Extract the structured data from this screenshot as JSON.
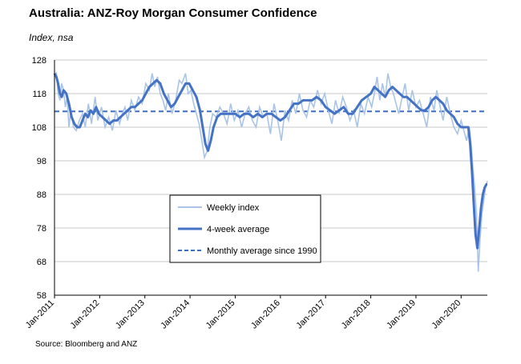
{
  "header": {
    "title": "Australia: ANZ-Roy Morgan Consumer Confidence",
    "subtitle": "Index, nsa"
  },
  "footer": {
    "source": "Source: Bloomberg and ANZ"
  },
  "colors": {
    "weekly": "#a9c4e6",
    "avg4": "#4472c4",
    "monthly": "#3f6fbf",
    "grid": "#c8c8c8"
  },
  "chart_data": {
    "type": "line",
    "title": "Australia: ANZ-Roy Morgan Consumer Confidence",
    "ylabel": "Index, nsa",
    "xlabel": "",
    "ylim": [
      58,
      128
    ],
    "yticks": [
      58,
      68,
      78,
      88,
      98,
      108,
      118,
      128
    ],
    "xlim": [
      2011.0,
      2020.58
    ],
    "xticks": [
      {
        "x": 2011,
        "label": "Jan-2011"
      },
      {
        "x": 2012,
        "label": "Jan-2012"
      },
      {
        "x": 2013,
        "label": "Jan-2013"
      },
      {
        "x": 2014,
        "label": "Jan-2014"
      },
      {
        "x": 2015,
        "label": "Jan-2015"
      },
      {
        "x": 2016,
        "label": "Jan-2016"
      },
      {
        "x": 2017,
        "label": "Jan-2017"
      },
      {
        "x": 2018,
        "label": "Jan-2018"
      },
      {
        "x": 2019,
        "label": "Jan-2019"
      },
      {
        "x": 2020,
        "label": "Jan-2020"
      }
    ],
    "legend": [
      "Weekly index",
      "4-week average",
      "Monthly average since 1990"
    ],
    "series": [
      {
        "name": "Weekly index",
        "style": "thin-light",
        "x": [
          2011.0,
          2011.04,
          2011.08,
          2011.12,
          2011.16,
          2011.2,
          2011.24,
          2011.28,
          2011.32,
          2011.36,
          2011.42,
          2011.48,
          2011.55,
          2011.62,
          2011.68,
          2011.75,
          2011.82,
          2011.9,
          2011.96,
          2012.04,
          2012.12,
          2012.2,
          2012.28,
          2012.36,
          2012.44,
          2012.5,
          2012.56,
          2012.62,
          2012.7,
          2012.78,
          2012.86,
          2012.94,
          2013.02,
          2013.1,
          2013.16,
          2013.22,
          2013.28,
          2013.34,
          2013.4,
          2013.46,
          2013.52,
          2013.6,
          2013.68,
          2013.76,
          2013.82,
          2013.9,
          2013.96,
          2014.02,
          2014.08,
          2014.14,
          2014.2,
          2014.26,
          2014.32,
          2014.38,
          2014.44,
          2014.5,
          2014.58,
          2014.66,
          2014.74,
          2014.82,
          2014.9,
          2014.98,
          2015.06,
          2015.14,
          2015.22,
          2015.3,
          2015.38,
          2015.46,
          2015.54,
          2015.62,
          2015.7,
          2015.78,
          2015.86,
          2015.94,
          2016.02,
          2016.1,
          2016.18,
          2016.26,
          2016.34,
          2016.42,
          2016.5,
          2016.58,
          2016.66,
          2016.74,
          2016.82,
          2016.9,
          2016.98,
          2017.06,
          2017.14,
          2017.22,
          2017.3,
          2017.38,
          2017.46,
          2017.54,
          2017.62,
          2017.7,
          2017.78,
          2017.86,
          2017.94,
          2018.02,
          2018.08,
          2018.14,
          2018.2,
          2018.26,
          2018.32,
          2018.38,
          2018.44,
          2018.5,
          2018.56,
          2018.62,
          2018.68,
          2018.76,
          2018.84,
          2018.92,
          2019.0,
          2019.08,
          2019.16,
          2019.24,
          2019.32,
          2019.4,
          2019.46,
          2019.52,
          2019.6,
          2019.68,
          2019.76,
          2019.84,
          2019.92,
          2020.0,
          2020.06,
          2020.12,
          2020.18,
          2020.22,
          2020.26,
          2020.3,
          2020.34,
          2020.38,
          2020.42,
          2020.46,
          2020.5,
          2020.54,
          2020.58
        ],
        "values": [
          123,
          124,
          118,
          116,
          121,
          119,
          114,
          117,
          108,
          113,
          108,
          107,
          110,
          112,
          108,
          115,
          109,
          117,
          110,
          114,
          108,
          111,
          107,
          113,
          109,
          112,
          114,
          110,
          116,
          113,
          117,
          115,
          121,
          119,
          124,
          120,
          123,
          118,
          116,
          113,
          118,
          112,
          116,
          122,
          121,
          124,
          118,
          119,
          115,
          112,
          109,
          104,
          99,
          101,
          108,
          112,
          111,
          114,
          112,
          109,
          115,
          110,
          113,
          108,
          112,
          114,
          110,
          108,
          114,
          111,
          112,
          106,
          115,
          110,
          104,
          113,
          110,
          116,
          112,
          118,
          113,
          111,
          116,
          114,
          119,
          115,
          118,
          113,
          109,
          116,
          112,
          117,
          114,
          110,
          113,
          108,
          115,
          112,
          117,
          114,
          118,
          123,
          116,
          121,
          117,
          124,
          120,
          118,
          115,
          112,
          116,
          121,
          113,
          119,
          114,
          116,
          112,
          108,
          117,
          113,
          119,
          115,
          110,
          117,
          112,
          108,
          106,
          110,
          107,
          104,
          108,
          103,
          96,
          90,
          82,
          65,
          75,
          82,
          86,
          90,
          92
        ]
      },
      {
        "name": "4-week average",
        "style": "thick",
        "x": [
          2011.0,
          2011.04,
          2011.08,
          2011.12,
          2011.16,
          2011.2,
          2011.26,
          2011.32,
          2011.38,
          2011.44,
          2011.5,
          2011.56,
          2011.62,
          2011.68,
          2011.74,
          2011.8,
          2011.86,
          2011.92,
          2011.98,
          2012.06,
          2012.14,
          2012.22,
          2012.3,
          2012.38,
          2012.46,
          2012.54,
          2012.62,
          2012.7,
          2012.78,
          2012.86,
          2012.94,
          2013.02,
          2013.1,
          2013.18,
          2013.26,
          2013.34,
          2013.42,
          2013.5,
          2013.58,
          2013.66,
          2013.74,
          2013.82,
          2013.9,
          2013.98,
          2014.06,
          2014.14,
          2014.22,
          2014.28,
          2014.34,
          2014.4,
          2014.46,
          2014.52,
          2014.6,
          2014.68,
          2014.76,
          2014.84,
          2014.92,
          2015.0,
          2015.1,
          2015.2,
          2015.3,
          2015.4,
          2015.5,
          2015.6,
          2015.7,
          2015.8,
          2015.9,
          2016.0,
          2016.1,
          2016.2,
          2016.3,
          2016.4,
          2016.5,
          2016.6,
          2016.7,
          2016.8,
          2016.9,
          2017.0,
          2017.1,
          2017.2,
          2017.3,
          2017.4,
          2017.5,
          2017.6,
          2017.7,
          2017.8,
          2017.9,
          2018.0,
          2018.08,
          2018.16,
          2018.24,
          2018.32,
          2018.4,
          2018.48,
          2018.56,
          2018.64,
          2018.72,
          2018.8,
          2018.88,
          2018.96,
          2019.04,
          2019.12,
          2019.2,
          2019.28,
          2019.36,
          2019.44,
          2019.52,
          2019.6,
          2019.68,
          2019.76,
          2019.84,
          2019.92,
          2020.0,
          2020.06,
          2020.12,
          2020.16,
          2020.2,
          2020.24,
          2020.28,
          2020.32,
          2020.36,
          2020.4,
          2020.44,
          2020.48,
          2020.52,
          2020.56,
          2020.58
        ],
        "values": [
          124,
          123,
          121,
          118,
          117,
          119,
          118,
          115,
          111,
          109,
          108,
          108,
          110,
          112,
          111,
          113,
          112,
          114,
          112,
          111,
          110,
          109,
          110,
          110,
          111,
          112,
          113,
          114,
          114,
          115,
          116,
          118,
          120,
          121,
          122,
          121,
          118,
          116,
          114,
          115,
          117,
          119,
          121,
          121,
          119,
          117,
          113,
          108,
          103,
          101,
          104,
          108,
          111,
          112,
          112,
          112,
          112,
          112,
          111,
          112,
          112,
          111,
          112,
          111,
          112,
          112,
          111,
          110,
          111,
          113,
          115,
          115,
          116,
          116,
          116,
          117,
          116,
          114,
          113,
          112,
          113,
          114,
          112,
          112,
          114,
          116,
          117,
          118,
          120,
          119,
          118,
          117,
          119,
          120,
          119,
          118,
          117,
          117,
          116,
          115,
          114,
          113,
          113,
          114,
          116,
          117,
          116,
          115,
          113,
          112,
          111,
          109,
          108,
          108,
          108,
          108,
          103,
          95,
          85,
          76,
          72,
          78,
          84,
          88,
          90,
          91,
          91
        ]
      },
      {
        "name": "Monthly average since 1990",
        "style": "dashed",
        "x": [
          2011.0,
          2020.58
        ],
        "values": [
          112.7,
          112.7
        ]
      }
    ]
  }
}
